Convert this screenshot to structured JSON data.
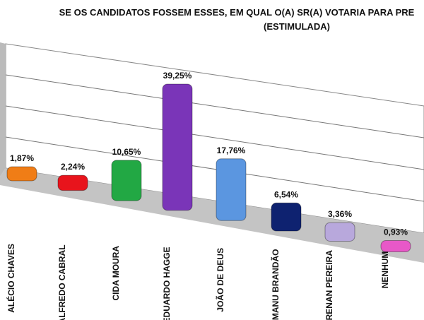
{
  "chart_data": {
    "type": "bar",
    "title": "SE OS CANDIDATOS FOSSEM ESSES, EM QUAL O(A) SR(A) VOTARIA PARA PRE",
    "subtitle": "(ESTIMULADA)",
    "categories": [
      "ALÉCIO CHAVES",
      "ALFREDO CABRAL",
      "CIDA MOURA",
      "EDUARDO HAGGE",
      "JOÃO DE DEUS",
      "MANU BRANDÃO",
      "RENAN PEREIRA",
      "NENHUM"
    ],
    "values": [
      1.87,
      2.24,
      10.65,
      39.25,
      17.76,
      6.54,
      3.36,
      0.93
    ],
    "value_labels": [
      "1,87%",
      "2,24%",
      "10,65%",
      "39,25%",
      "17,76%",
      "6,54%",
      "3,36%",
      "0,93%"
    ],
    "colors": [
      "#f07d16",
      "#e8141c",
      "#22a844",
      "#7a35b8",
      "#5b96e0",
      "#0e2270",
      "#b8a8dc",
      "#e858c8"
    ],
    "ylim": [
      0,
      40
    ]
  }
}
